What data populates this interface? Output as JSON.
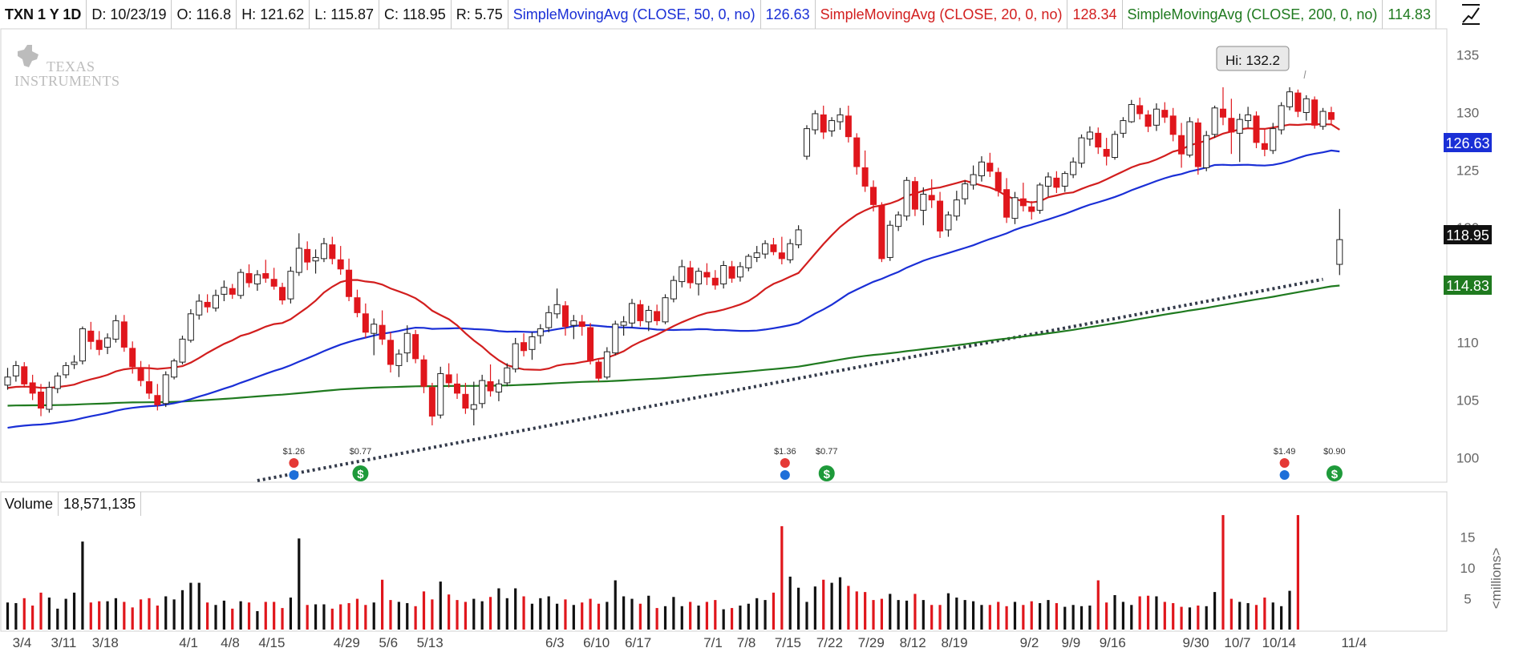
{
  "header": {
    "symbol": "TXN 1 Y 1D",
    "date": "D: 10/23/19",
    "open": "O: 116.8",
    "high": "H: 121.62",
    "low": "L: 115.87",
    "close": "C: 118.95",
    "range": "R: 5.75",
    "sma50_label": "SimpleMovingAvg (CLOSE, 50, 0, no)",
    "sma50_value": "126.63",
    "sma20_label": "SimpleMovingAvg (CLOSE, 20, 0, no)",
    "sma20_value": "128.34",
    "sma200_label": "SimpleMovingAvg (CLOSE, 200, 0, no)",
    "sma200_value": "114.83"
  },
  "logo_text": "Texas Instruments",
  "hi_label": "Hi: 132.2",
  "price_tags": {
    "sma50": "126.63",
    "last": "118.95",
    "sma200": "114.83"
  },
  "volume_header": {
    "label": "Volume",
    "value": "18,571,135"
  },
  "volume_axis_unit": "<millions>",
  "colors": {
    "up": "#111111",
    "down": "#e0161c",
    "sma50": "#1a2fd6",
    "sma20": "#d21e1e",
    "sma200": "#1f7a1f",
    "trendline": "#333a4a"
  },
  "chart_data": {
    "type": "candlestick",
    "price_axis": {
      "ylim": [
        98,
        137
      ],
      "ticks": [
        100,
        105,
        110,
        115,
        120,
        125,
        130,
        135
      ]
    },
    "volume_axis": {
      "ylim": [
        0,
        19
      ],
      "ticks": [
        5,
        10,
        15
      ],
      "unit": "<millions>"
    },
    "x_tick_labels": [
      {
        "i": 0,
        "label": "3/4"
      },
      {
        "i": 5,
        "label": "3/11"
      },
      {
        "i": 10,
        "label": "3/18"
      },
      {
        "i": 20,
        "label": "4/1"
      },
      {
        "i": 25,
        "label": "4/8"
      },
      {
        "i": 30,
        "label": "4/15"
      },
      {
        "i": 39,
        "label": "4/29"
      },
      {
        "i": 44,
        "label": "5/6"
      },
      {
        "i": 49,
        "label": "5/13"
      },
      {
        "i": 64,
        "label": "6/3"
      },
      {
        "i": 69,
        "label": "6/10"
      },
      {
        "i": 74,
        "label": "6/17"
      },
      {
        "i": 83,
        "label": "7/1"
      },
      {
        "i": 87,
        "label": "7/8"
      },
      {
        "i": 92,
        "label": "7/15"
      },
      {
        "i": 97,
        "label": "7/22"
      },
      {
        "i": 102,
        "label": "7/29"
      },
      {
        "i": 107,
        "label": "8/12"
      },
      {
        "i": 112,
        "label": "8/19"
      },
      {
        "i": 121,
        "label": "9/2"
      },
      {
        "i": 126,
        "label": "9/9"
      },
      {
        "i": 131,
        "label": "9/16"
      },
      {
        "i": 141,
        "label": "9/30"
      },
      {
        "i": 146,
        "label": "10/7"
      },
      {
        "i": 151,
        "label": "10/14"
      },
      {
        "i": 160,
        "label": "11/4"
      }
    ],
    "hi": {
      "i": 146,
      "value": 132.2
    },
    "trendline": {
      "from": {
        "i": 30,
        "value": 98.0
      },
      "to": {
        "i": 158,
        "value": 115.5
      }
    },
    "events": [
      {
        "i": 34,
        "label": "$1.26",
        "kind": "earnings"
      },
      {
        "i": 42,
        "label": "$0.77",
        "kind": "dividend"
      },
      {
        "i": 93,
        "label": "$1.36",
        "kind": "earnings"
      },
      {
        "i": 98,
        "label": "$0.77",
        "kind": "dividend"
      },
      {
        "i": 153,
        "label": "$1.49",
        "kind": "earnings"
      },
      {
        "i": 159,
        "label": "$0.90",
        "kind": "dividend"
      }
    ],
    "candles": [
      [
        106.3,
        107.8,
        105.9,
        107.0
      ],
      [
        107.1,
        108.4,
        106.6,
        108.0
      ],
      [
        107.9,
        108.3,
        106.1,
        106.4
      ],
      [
        106.5,
        107.2,
        105.0,
        105.6
      ],
      [
        105.7,
        106.4,
        103.6,
        104.3
      ],
      [
        104.2,
        106.6,
        103.9,
        106.1
      ],
      [
        106.0,
        107.4,
        105.6,
        107.1
      ],
      [
        107.2,
        108.3,
        106.9,
        108.0
      ],
      [
        108.1,
        108.9,
        107.7,
        108.3
      ],
      [
        108.4,
        111.4,
        108.1,
        111.2
      ],
      [
        111.0,
        111.8,
        109.4,
        110.1
      ],
      [
        110.2,
        111.0,
        108.9,
        109.4
      ],
      [
        109.6,
        110.8,
        109.0,
        110.4
      ],
      [
        110.3,
        112.4,
        110.0,
        111.9
      ],
      [
        111.8,
        112.4,
        109.2,
        109.6
      ],
      [
        109.5,
        110.1,
        107.3,
        107.9
      ],
      [
        107.8,
        108.4,
        106.2,
        106.7
      ],
      [
        106.6,
        108.1,
        105.1,
        105.6
      ],
      [
        105.4,
        106.4,
        104.1,
        104.6
      ],
      [
        104.7,
        107.5,
        104.4,
        107.2
      ],
      [
        107.0,
        108.6,
        106.8,
        108.4
      ],
      [
        108.3,
        110.6,
        108.1,
        110.3
      ],
      [
        110.2,
        112.9,
        110.0,
        112.5
      ],
      [
        112.4,
        114.2,
        112.0,
        113.6
      ],
      [
        113.5,
        114.2,
        112.6,
        113.1
      ],
      [
        113.0,
        114.6,
        112.7,
        114.1
      ],
      [
        114.2,
        115.4,
        113.6,
        114.8
      ],
      [
        114.7,
        115.1,
        113.8,
        114.2
      ],
      [
        114.1,
        116.4,
        113.8,
        116.1
      ],
      [
        116.0,
        116.8,
        114.8,
        115.2
      ],
      [
        115.1,
        116.3,
        114.5,
        115.9
      ],
      [
        116.0,
        117.2,
        115.2,
        115.6
      ],
      [
        115.5,
        116.5,
        114.6,
        114.9
      ],
      [
        114.8,
        115.2,
        113.3,
        113.7
      ],
      [
        113.8,
        116.6,
        113.4,
        116.2
      ],
      [
        116.1,
        119.5,
        115.8,
        118.2
      ],
      [
        118.1,
        118.8,
        116.3,
        117.0
      ],
      [
        117.1,
        118.1,
        116.0,
        117.4
      ],
      [
        117.3,
        119.1,
        117.0,
        118.6
      ],
      [
        118.5,
        119.2,
        116.8,
        117.3
      ],
      [
        117.2,
        118.4,
        115.9,
        116.4
      ],
      [
        116.3,
        117.3,
        113.6,
        114.0
      ],
      [
        113.9,
        114.6,
        112.2,
        112.6
      ],
      [
        112.5,
        113.4,
        110.4,
        110.9
      ],
      [
        110.8,
        112.1,
        108.9,
        111.6
      ],
      [
        111.5,
        112.8,
        109.8,
        110.3
      ],
      [
        110.2,
        110.9,
        107.4,
        108.1
      ],
      [
        108.0,
        109.4,
        107.0,
        109.0
      ],
      [
        109.1,
        111.5,
        108.3,
        110.8
      ],
      [
        110.7,
        111.1,
        108.2,
        108.6
      ],
      [
        108.5,
        108.9,
        105.6,
        106.2
      ],
      [
        106.1,
        106.5,
        102.8,
        103.6
      ],
      [
        103.7,
        107.9,
        103.4,
        107.3
      ],
      [
        107.2,
        108.2,
        106.1,
        106.5
      ],
      [
        106.4,
        107.3,
        105.1,
        105.6
      ],
      [
        105.5,
        106.5,
        103.8,
        104.3
      ],
      [
        104.2,
        106.6,
        102.8,
        104.6
      ],
      [
        104.7,
        107.2,
        104.3,
        106.7
      ],
      [
        106.6,
        108.1,
        105.3,
        105.8
      ],
      [
        105.7,
        106.8,
        104.9,
        106.4
      ],
      [
        106.5,
        108.2,
        106.2,
        107.8
      ],
      [
        107.7,
        110.4,
        107.4,
        109.9
      ],
      [
        110.0,
        110.8,
        108.8,
        109.3
      ],
      [
        109.4,
        110.9,
        108.5,
        110.5
      ],
      [
        110.6,
        111.6,
        109.9,
        111.2
      ],
      [
        111.3,
        113.2,
        110.9,
        112.6
      ],
      [
        112.5,
        114.7,
        112.1,
        113.3
      ],
      [
        113.2,
        113.6,
        110.6,
        111.4
      ],
      [
        111.5,
        112.4,
        110.3,
        111.9
      ],
      [
        111.8,
        112.4,
        110.6,
        111.4
      ],
      [
        111.3,
        111.7,
        108.1,
        108.4
      ],
      [
        108.3,
        108.5,
        106.6,
        106.9
      ],
      [
        107.0,
        109.6,
        106.8,
        109.2
      ],
      [
        109.1,
        111.9,
        108.9,
        111.6
      ],
      [
        111.5,
        112.3,
        110.6,
        111.8
      ],
      [
        111.7,
        113.8,
        111.3,
        113.4
      ],
      [
        113.3,
        113.7,
        111.4,
        111.9
      ],
      [
        111.8,
        113.2,
        111.0,
        112.8
      ],
      [
        112.7,
        113.3,
        111.5,
        111.9
      ],
      [
        111.8,
        114.2,
        111.6,
        113.9
      ],
      [
        113.8,
        115.8,
        113.5,
        115.4
      ],
      [
        115.3,
        117.2,
        114.8,
        116.6
      ],
      [
        116.5,
        117.1,
        114.7,
        115.2
      ],
      [
        115.1,
        116.5,
        114.1,
        116.2
      ],
      [
        116.1,
        116.9,
        115.0,
        115.7
      ],
      [
        115.6,
        116.3,
        114.6,
        115.0
      ],
      [
        115.1,
        117.1,
        114.7,
        116.7
      ],
      [
        116.6,
        117.1,
        115.2,
        115.6
      ],
      [
        115.7,
        117.0,
        115.3,
        116.6
      ],
      [
        116.5,
        117.7,
        116.2,
        117.5
      ],
      [
        117.4,
        118.4,
        117.0,
        117.8
      ],
      [
        117.7,
        118.9,
        117.3,
        118.6
      ],
      [
        118.5,
        119.1,
        117.6,
        117.9
      ],
      [
        117.8,
        119.2,
        116.8,
        117.3
      ],
      [
        117.2,
        119.0,
        116.9,
        118.6
      ],
      [
        118.5,
        120.2,
        118.2,
        119.8
      ],
      [
        126.2,
        128.9,
        125.9,
        128.6
      ],
      [
        128.5,
        130.2,
        128.1,
        129.9
      ],
      [
        129.8,
        130.6,
        127.7,
        128.3
      ],
      [
        128.4,
        129.6,
        127.9,
        129.3
      ],
      [
        129.2,
        130.4,
        128.5,
        129.8
      ],
      [
        129.7,
        130.6,
        127.4,
        127.9
      ],
      [
        127.8,
        128.2,
        124.6,
        125.3
      ],
      [
        125.2,
        126.7,
        123.1,
        123.6
      ],
      [
        123.5,
        124.1,
        121.4,
        122.0
      ],
      [
        121.9,
        122.2,
        117.0,
        117.3
      ],
      [
        117.4,
        120.6,
        117.1,
        120.2
      ],
      [
        120.1,
        121.4,
        119.7,
        121.1
      ],
      [
        121.0,
        124.4,
        120.6,
        124.1
      ],
      [
        124.0,
        124.4,
        121.0,
        121.6
      ],
      [
        121.5,
        123.5,
        120.2,
        122.9
      ],
      [
        122.8,
        124.2,
        121.7,
        122.4
      ],
      [
        122.3,
        123.1,
        119.1,
        119.7
      ],
      [
        119.8,
        121.4,
        119.2,
        121.1
      ],
      [
        121.0,
        123.2,
        120.6,
        122.4
      ],
      [
        122.5,
        124.1,
        122.0,
        123.8
      ],
      [
        123.7,
        125.4,
        123.3,
        124.6
      ],
      [
        124.5,
        126.2,
        124.0,
        125.7
      ],
      [
        125.6,
        126.5,
        124.4,
        124.9
      ],
      [
        124.8,
        125.2,
        122.7,
        123.2
      ],
      [
        123.3,
        124.3,
        120.4,
        120.9
      ],
      [
        120.8,
        123.1,
        120.3,
        122.6
      ],
      [
        122.5,
        123.9,
        121.4,
        121.9
      ],
      [
        121.8,
        122.3,
        120.7,
        121.4
      ],
      [
        121.5,
        123.9,
        121.2,
        123.7
      ],
      [
        123.6,
        124.8,
        122.7,
        124.4
      ],
      [
        124.3,
        124.9,
        123.0,
        123.5
      ],
      [
        123.6,
        124.9,
        123.1,
        124.7
      ],
      [
        124.6,
        126.1,
        124.3,
        125.7
      ],
      [
        125.6,
        128.1,
        125.2,
        127.8
      ],
      [
        127.7,
        128.8,
        127.1,
        128.3
      ],
      [
        128.2,
        128.7,
        126.4,
        127.0
      ],
      [
        126.8,
        127.8,
        125.4,
        126.2
      ],
      [
        126.1,
        128.4,
        125.9,
        128.1
      ],
      [
        128.2,
        129.6,
        127.8,
        129.3
      ],
      [
        129.2,
        131.1,
        129.1,
        130.7
      ],
      [
        130.6,
        131.3,
        129.4,
        129.9
      ],
      [
        129.8,
        130.2,
        128.3,
        128.8
      ],
      [
        128.9,
        130.8,
        128.4,
        130.3
      ],
      [
        130.2,
        130.9,
        129.1,
        129.6
      ],
      [
        129.7,
        130.4,
        127.5,
        128.1
      ],
      [
        128.0,
        129.1,
        125.2,
        126.4
      ],
      [
        126.3,
        129.6,
        126.1,
        129.2
      ],
      [
        129.1,
        129.5,
        124.6,
        125.3
      ],
      [
        125.2,
        128.4,
        124.9,
        128.0
      ],
      [
        128.1,
        130.6,
        127.8,
        130.4
      ],
      [
        130.3,
        132.2,
        128.9,
        129.6
      ],
      [
        129.5,
        131.2,
        126.4,
        128.3
      ],
      [
        128.2,
        129.9,
        125.7,
        129.4
      ],
      [
        129.3,
        130.5,
        128.7,
        129.8
      ],
      [
        129.7,
        130.1,
        126.9,
        127.4
      ],
      [
        127.3,
        128.6,
        126.2,
        126.8
      ],
      [
        126.7,
        129.1,
        126.4,
        128.6
      ],
      [
        128.5,
        130.9,
        128.1,
        130.6
      ],
      [
        130.5,
        132.2,
        130.2,
        131.8
      ],
      [
        131.7,
        132.0,
        129.6,
        130.1
      ],
      [
        130.0,
        131.5,
        129.3,
        131.2
      ],
      [
        131.1,
        131.4,
        128.6,
        128.9
      ],
      [
        128.8,
        130.4,
        128.5,
        130.1
      ],
      [
        130.0,
        130.5,
        128.9,
        129.4
      ],
      [
        116.8,
        121.62,
        115.87,
        118.95
      ]
    ],
    "volume": [
      4.4,
      4.3,
      5.1,
      3.9,
      6.0,
      5.2,
      3.4,
      5.0,
      6.0,
      14.3,
      4.4,
      4.6,
      4.6,
      5.1,
      4.5,
      3.6,
      4.9,
      5.1,
      3.9,
      5.4,
      4.9,
      6.4,
      7.6,
      7.6,
      4.4,
      4.0,
      4.7,
      3.4,
      4.6,
      4.4,
      3.0,
      4.5,
      4.5,
      3.5,
      5.2,
      14.8,
      4.0,
      4.1,
      4.1,
      3.4,
      4.1,
      4.3,
      5.0,
      4.0,
      4.4,
      8.1,
      4.8,
      4.5,
      4.3,
      3.8,
      6.2,
      4.9,
      7.8,
      5.7,
      4.8,
      4.5,
      5.0,
      4.6,
      5.3,
      6.7,
      5.1,
      6.7,
      5.4,
      4.2,
      5.1,
      5.4,
      4.2,
      4.9,
      4.0,
      4.4,
      5.0,
      4.2,
      4.5,
      8.0,
      5.4,
      5.0,
      4.2,
      5.5,
      3.5,
      3.8,
      5.3,
      3.8,
      4.5,
      3.9,
      4.5,
      4.8,
      3.3,
      3.5,
      3.9,
      4.2,
      5.1,
      4.8,
      6.0,
      16.8,
      8.6,
      6.8,
      4.5,
      7.0,
      8.1,
      7.6,
      8.5,
      7.1,
      6.2,
      6.1,
      4.8,
      5.0,
      5.8,
      4.8,
      4.7,
      5.8,
      4.8,
      4.0,
      4.0,
      5.9,
      5.2,
      4.8,
      4.6,
      4.0,
      4.0,
      4.5,
      3.8,
      4.5,
      4.0,
      4.6,
      4.3,
      4.8,
      4.3,
      3.7,
      4.0,
      3.8,
      3.9,
      8.0,
      4.4,
      5.6,
      4.5,
      4.0,
      5.4,
      5.5,
      5.4,
      4.5,
      4.3,
      3.7,
      3.6,
      3.9,
      3.8,
      6.1,
      18.6,
      5.0,
      4.5,
      4.3,
      4.0,
      5.2,
      4.4,
      3.8,
      6.3,
      18.6
    ]
  }
}
